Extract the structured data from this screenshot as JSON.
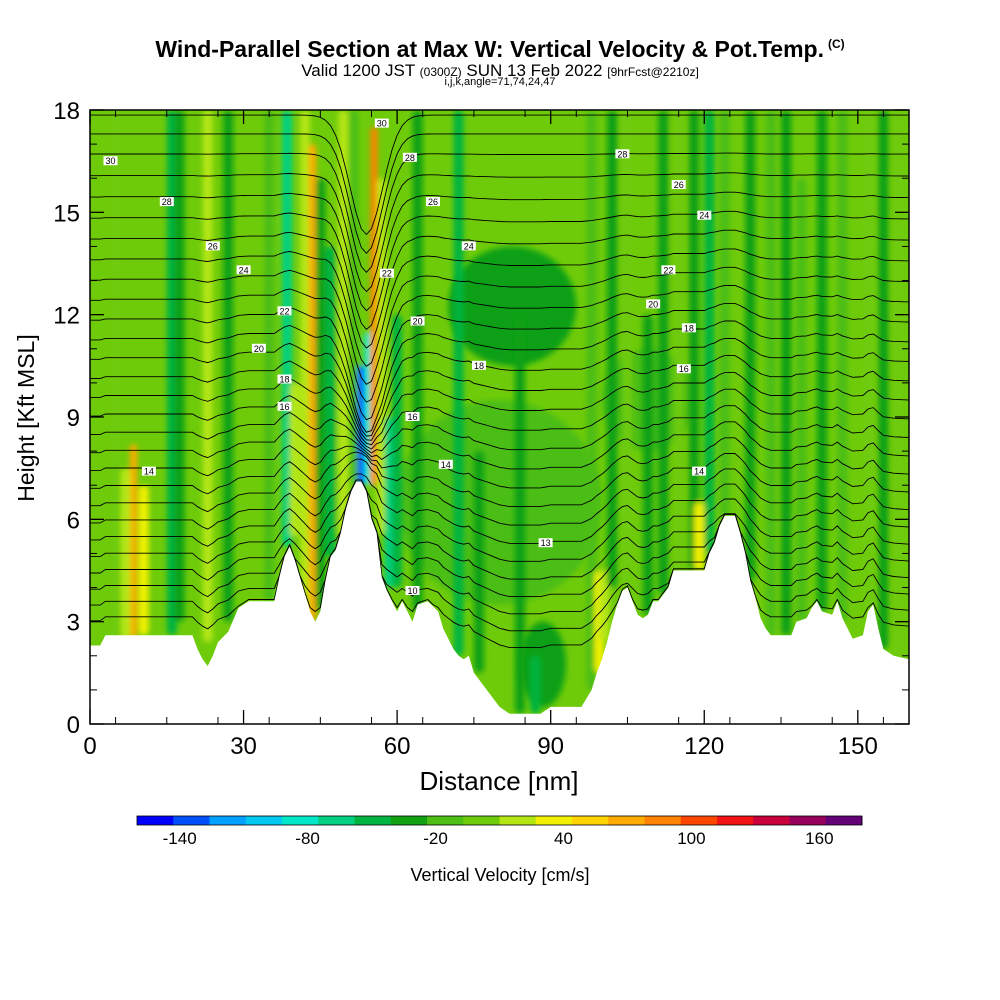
{
  "title": {
    "main": "Wind-Parallel Section at Max W: Vertical Velocity & Pot.Temp.",
    "copyright": "(C)",
    "valid_pre": "Valid 1200 JST",
    "valid_utc": "(0300Z)",
    "valid_date": "SUN 13 Feb 2022",
    "forecast": "[9hrFcst@2210z]",
    "params": "i,j,k,angle=71,74,24,47"
  },
  "chart_data": {
    "type": "heatmap",
    "xlabel": "Distance [nm]",
    "ylabel": "Height [Kft MSL]",
    "xlim": [
      0,
      160
    ],
    "ylim": [
      0,
      18
    ],
    "x_ticks": [
      0,
      30,
      60,
      90,
      120,
      150
    ],
    "y_ticks": [
      0,
      3,
      6,
      9,
      12,
      15,
      18
    ],
    "colorbar": {
      "label": "Vertical Velocity [cm/s]",
      "min": -160,
      "max": 180,
      "step": 20,
      "tick_labels": [
        -140,
        -80,
        -20,
        40,
        100,
        160
      ],
      "colors": [
        "#0000ff",
        "#0050ff",
        "#00a0ff",
        "#00c8f0",
        "#00e6c8",
        "#00d080",
        "#00b441",
        "#11a012",
        "#4cbe14",
        "#6ecb0a",
        "#b4e614",
        "#f0f000",
        "#ffd200",
        "#ffaa00",
        "#ff8200",
        "#ff4600",
        "#f01414",
        "#c8003c",
        "#96005a",
        "#640078"
      ]
    },
    "background_fill": "#6ecb0a",
    "terrain_profile": [
      [
        0,
        2.3
      ],
      [
        2,
        2.3
      ],
      [
        3,
        2.6
      ],
      [
        20,
        2.6
      ],
      [
        21,
        2.2
      ],
      [
        22,
        1.9
      ],
      [
        23,
        1.7
      ],
      [
        24,
        2.0
      ],
      [
        25,
        2.4
      ],
      [
        27,
        2.7
      ],
      [
        29,
        3.4
      ],
      [
        31,
        3.6
      ],
      [
        36,
        3.6
      ],
      [
        37,
        4.3
      ],
      [
        38,
        4.9
      ],
      [
        39,
        5.2
      ],
      [
        40,
        4.8
      ],
      [
        41,
        4.3
      ],
      [
        42,
        3.8
      ],
      [
        43,
        3.3
      ],
      [
        44,
        3.0
      ],
      [
        45,
        3.3
      ],
      [
        46,
        4.2
      ],
      [
        47,
        4.9
      ],
      [
        48,
        5.1
      ],
      [
        49,
        5.6
      ],
      [
        50,
        6.3
      ],
      [
        51,
        6.8
      ],
      [
        52,
        7.1
      ],
      [
        53,
        7.1
      ],
      [
        54,
        6.8
      ],
      [
        55,
        6.0
      ],
      [
        56,
        5.6
      ],
      [
        57,
        4.3
      ],
      [
        58,
        3.9
      ],
      [
        59,
        3.6
      ],
      [
        60,
        3.3
      ],
      [
        61,
        3.6
      ],
      [
        62,
        3.3
      ],
      [
        63,
        3.0
      ],
      [
        64,
        3.5
      ],
      [
        66,
        3.6
      ],
      [
        68,
        3.3
      ],
      [
        69,
        2.8
      ],
      [
        70,
        2.5
      ],
      [
        71,
        2.2
      ],
      [
        72,
        2.0
      ],
      [
        73,
        1.9
      ],
      [
        74,
        2.0
      ],
      [
        75,
        1.5
      ],
      [
        78,
        0.9
      ],
      [
        80,
        0.5
      ],
      [
        82,
        0.3
      ],
      [
        88,
        0.3
      ],
      [
        90,
        0.5
      ],
      [
        96,
        0.5
      ],
      [
        98,
        1.0
      ],
      [
        99,
        1.5
      ],
      [
        100,
        1.9
      ],
      [
        101,
        2.4
      ],
      [
        102,
        3.0
      ],
      [
        103,
        3.5
      ],
      [
        104,
        3.9
      ],
      [
        105,
        4.0
      ],
      [
        106,
        3.6
      ],
      [
        107,
        3.2
      ],
      [
        108,
        3.1
      ],
      [
        109,
        3.2
      ],
      [
        110,
        3.6
      ],
      [
        111,
        3.6
      ],
      [
        112,
        3.8
      ],
      [
        113,
        4.0
      ],
      [
        114,
        4.5
      ],
      [
        120,
        4.5
      ],
      [
        121,
        5.0
      ],
      [
        122,
        5.3
      ],
      [
        123,
        5.8
      ],
      [
        124,
        6.1
      ],
      [
        126,
        6.1
      ],
      [
        127,
        5.6
      ],
      [
        128,
        5.0
      ],
      [
        129,
        4.2
      ],
      [
        130,
        3.7
      ],
      [
        131,
        3.1
      ],
      [
        132,
        2.8
      ],
      [
        133,
        2.6
      ],
      [
        137,
        2.6
      ],
      [
        138,
        3.0
      ],
      [
        140,
        3.1
      ],
      [
        141,
        3.4
      ],
      [
        142,
        3.6
      ],
      [
        143,
        3.3
      ],
      [
        145,
        3.2
      ],
      [
        146,
        3.6
      ],
      [
        147,
        3.1
      ],
      [
        148,
        2.8
      ],
      [
        149,
        2.5
      ],
      [
        151,
        2.6
      ],
      [
        152,
        3.3
      ],
      [
        153,
        3.5
      ],
      [
        154,
        2.8
      ],
      [
        155,
        2.2
      ],
      [
        157,
        2.0
      ],
      [
        160,
        1.9
      ]
    ],
    "velocity_features": [
      {
        "x": 8.5,
        "y": [
          2.5,
          8.2
        ],
        "value": 110
      },
      {
        "x": 10.5,
        "y": [
          2.6,
          7.0
        ],
        "value": 60
      },
      {
        "x": 7,
        "y": [
          2.5,
          7.5
        ],
        "value": 40
      },
      {
        "x": 5,
        "y": [
          2.3,
          18
        ],
        "value": 20
      },
      {
        "x": 16,
        "y": [
          2.6,
          18
        ],
        "value": -30
      },
      {
        "x": 17.5,
        "y": [
          3,
          18
        ],
        "value": -10
      },
      {
        "x": 23,
        "y": [
          2.4,
          18
        ],
        "value": 45
      },
      {
        "x": 27,
        "y": [
          3,
          18
        ],
        "value": -20
      },
      {
        "x": 35,
        "y": [
          3.6,
          18
        ],
        "value": 15
      },
      {
        "x": 38.5,
        "y": [
          5.2,
          18
        ],
        "value": -50
      },
      {
        "x": 40,
        "y": [
          5.5,
          10
        ],
        "value": 40
      },
      {
        "x": 42,
        "y": [
          3.3,
          18
        ],
        "value": 50
      },
      {
        "x": 43.5,
        "y": [
          3.0,
          17
        ],
        "value": 100
      },
      {
        "x": 45,
        "y": [
          3.3,
          16
        ],
        "value": -10
      },
      {
        "x": 47,
        "y": [
          4.9,
          14
        ],
        "value": -40
      },
      {
        "x": 49.5,
        "y": [
          5.5,
          18
        ],
        "value": 45
      },
      {
        "x": 51.5,
        "y": [
          7.0,
          18
        ],
        "value": 15
      },
      {
        "x": 53,
        "y": [
          7.0,
          10.5
        ],
        "value": -130
      },
      {
        "x": 54.5,
        "y": [
          7.0,
          11.5
        ],
        "value": -70
      },
      {
        "x": 55.5,
        "y": [
          7.0,
          17.5
        ],
        "value": 120
      },
      {
        "x": 57,
        "y": [
          5.6,
          16
        ],
        "value": 50
      },
      {
        "x": 58.5,
        "y": [
          4.0,
          9
        ],
        "value": -60
      },
      {
        "x": 60,
        "y": [
          4.0,
          12
        ],
        "value": -30
      },
      {
        "x": 64,
        "y": [
          3.3,
          18
        ],
        "value": -20
      },
      {
        "x": 72,
        "y": [
          2.0,
          18
        ],
        "value": -30
      },
      {
        "x": 76,
        "y": [
          1.5,
          8
        ],
        "value": -15
      },
      {
        "x": 84,
        "y": [
          0.3,
          12
        ],
        "value": -10
      },
      {
        "x": 87,
        "y": [
          0.3,
          2.0
        ],
        "value": -30
      },
      {
        "x": 98,
        "y": [
          1.0,
          18
        ],
        "value": 15
      },
      {
        "x": 99.5,
        "y": [
          1.5,
          4.5
        ],
        "value": 60
      },
      {
        "x": 100.5,
        "y": [
          2.4,
          4.5
        ],
        "value": 40
      },
      {
        "x": 102,
        "y": [
          4.0,
          18
        ],
        "value": -20
      },
      {
        "x": 105,
        "y": [
          4.0,
          18
        ],
        "value": 30
      },
      {
        "x": 109,
        "y": [
          3.2,
          12
        ],
        "value": -10
      },
      {
        "x": 112,
        "y": [
          3.8,
          18
        ],
        "value": -20
      },
      {
        "x": 115,
        "y": [
          4.5,
          18
        ],
        "value": 20
      },
      {
        "x": 118,
        "y": [
          4.5,
          18
        ],
        "value": -20
      },
      {
        "x": 119,
        "y": [
          4.5,
          6.5
        ],
        "value": 70
      },
      {
        "x": 121,
        "y": [
          5.0,
          18
        ],
        "value": -40
      },
      {
        "x": 124,
        "y": [
          6.1,
          18
        ],
        "value": 10
      },
      {
        "x": 129,
        "y": [
          4.2,
          18
        ],
        "value": -20
      },
      {
        "x": 133,
        "y": [
          2.6,
          18
        ],
        "value": 10
      },
      {
        "x": 136,
        "y": [
          2.6,
          18
        ],
        "value": -20
      },
      {
        "x": 139,
        "y": [
          3.0,
          16
        ],
        "value": 15
      },
      {
        "x": 143,
        "y": [
          3.3,
          18
        ],
        "value": -20
      },
      {
        "x": 147,
        "y": [
          3.0,
          18
        ],
        "value": 15
      },
      {
        "x": 152,
        "y": [
          3.3,
          18
        ],
        "value": 20
      },
      {
        "x": 155,
        "y": [
          2.2,
          18
        ],
        "value": -10
      },
      {
        "x": 158,
        "y": [
          2.0,
          18
        ],
        "value": 25
      }
    ],
    "velocity_blobs": [
      {
        "x": [
          60,
          100
        ],
        "y": [
          3.5,
          9.5
        ],
        "value": 10
      },
      {
        "x": [
          100,
          118
        ],
        "y": [
          8.0,
          11.0
        ],
        "value": 10
      },
      {
        "x": [
          70,
          95
        ],
        "y": [
          10.5,
          14.0
        ],
        "value": -10
      },
      {
        "x": [
          84,
          93
        ],
        "y": [
          0.5,
          3.0
        ],
        "value": -20
      }
    ],
    "theta_labels": [
      {
        "text": "30",
        "x": 4,
        "y": 16.5
      },
      {
        "text": "28",
        "x": 15,
        "y": 15.3
      },
      {
        "text": "26",
        "x": 24,
        "y": 14.0
      },
      {
        "text": "24",
        "x": 30,
        "y": 13.3
      },
      {
        "text": "22",
        "x": 38,
        "y": 12.1
      },
      {
        "text": "20",
        "x": 33,
        "y": 11.0
      },
      {
        "text": "18",
        "x": 38,
        "y": 10.1
      },
      {
        "text": "16",
        "x": 38,
        "y": 9.3
      },
      {
        "text": "14",
        "x": 11.5,
        "y": 7.4
      },
      {
        "text": "30",
        "x": 57,
        "y": 17.6
      },
      {
        "text": "28",
        "x": 62.5,
        "y": 16.6
      },
      {
        "text": "26",
        "x": 67,
        "y": 15.3
      },
      {
        "text": "24",
        "x": 74,
        "y": 14.0
      },
      {
        "text": "22",
        "x": 58,
        "y": 13.2
      },
      {
        "text": "20",
        "x": 64,
        "y": 11.8
      },
      {
        "text": "18",
        "x": 76,
        "y": 10.5
      },
      {
        "text": "16",
        "x": 63,
        "y": 9.0
      },
      {
        "text": "14",
        "x": 69.5,
        "y": 7.6
      },
      {
        "text": "13",
        "x": 89,
        "y": 5.3
      },
      {
        "text": "10",
        "x": 63,
        "y": 3.9
      },
      {
        "text": "28",
        "x": 104,
        "y": 16.7
      },
      {
        "text": "26",
        "x": 115,
        "y": 15.8
      },
      {
        "text": "24",
        "x": 120,
        "y": 14.9
      },
      {
        "text": "22",
        "x": 113,
        "y": 13.3
      },
      {
        "text": "20",
        "x": 110,
        "y": 12.3
      },
      {
        "text": "18",
        "x": 117,
        "y": 11.6
      },
      {
        "text": "16",
        "x": 116,
        "y": 10.4
      },
      {
        "text": "14",
        "x": 119,
        "y": 7.4
      }
    ]
  }
}
